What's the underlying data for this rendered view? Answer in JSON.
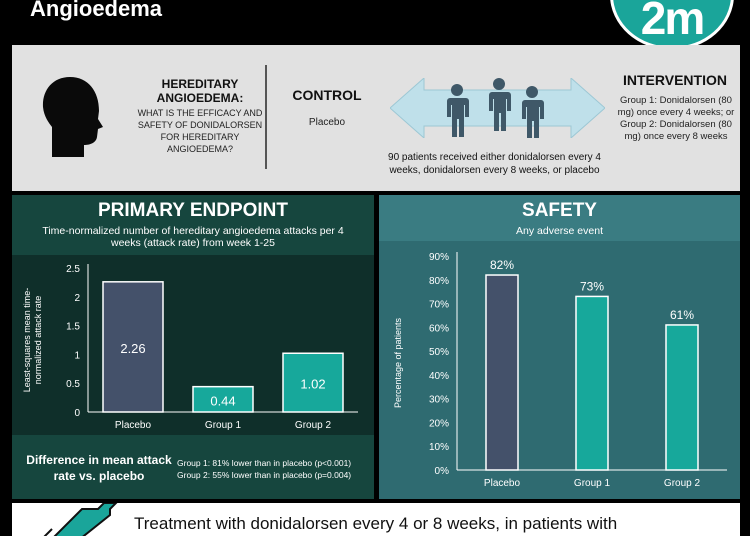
{
  "header": {
    "title": "Angioedema",
    "logo_text": "2m"
  },
  "pico": {
    "question_title": "HEREDITARY ANGIOEDEMA:",
    "question_text": "WHAT IS THE EFFICACY AND SAFETY OF DONIDALORSEN FOR HEREDITARY ANGIOEDEMA?",
    "control_title": "CONTROL",
    "control_text": "Placebo",
    "population_text": "90 patients received either donidalorsen every 4 weeks, donidalorsen every 8 weeks, or placebo",
    "intervention_title": "INTERVENTION",
    "intervention_group1": "Group 1: Donidalorsen (80 mg) once every 4 weeks; or",
    "intervention_group2": "Group 2: Donidalorsen (80 mg) once every 8 weeks"
  },
  "primary": {
    "title": "PRIMARY ENDPOINT",
    "subtitle": "Time-normalized number of hereditary angioedema attacks per 4 weeks (attack rate) from week 1-25",
    "difference_title": "Difference in mean attack rate vs. placebo",
    "difference_group1": "Group 1: 81% lower than in placebo (p<0.001)",
    "difference_group2": "Group 2: 55% lower than in placebo (p=0.004)"
  },
  "safety": {
    "title": "SAFETY",
    "subtitle": "Any adverse event"
  },
  "conclusion": {
    "text": "Treatment with donidalorsen every 4 or 8 weeks, in patients with"
  },
  "chart_data": [
    {
      "type": "bar",
      "title": "",
      "categories": [
        "Placebo",
        "Group 1",
        "Group 2"
      ],
      "values": [
        2.26,
        0.44,
        1.02
      ],
      "value_labels": [
        "2.26",
        "0.44",
        "1.02"
      ],
      "ylabel": "Least-squares mean time-normalized attack rate",
      "xlabel": "",
      "ylim": [
        0,
        2.5
      ],
      "yticks": [
        0,
        0.5,
        1,
        1.5,
        2,
        2.5
      ],
      "ytick_labels": [
        "0",
        "0.5",
        "1",
        "1.5",
        "2",
        "2.5"
      ],
      "colors": [
        "#44516a",
        "#17a89b",
        "#17a89b"
      ],
      "label_position": "inside",
      "grid": false,
      "legend": "none"
    },
    {
      "type": "bar",
      "title": "",
      "categories": [
        "Placebo",
        "Group 1",
        "Group 2"
      ],
      "values": [
        82,
        73,
        61
      ],
      "value_labels": [
        "82%",
        "73%",
        "61%"
      ],
      "ylabel": "Percentage of patients",
      "xlabel": "",
      "ylim": [
        0,
        90
      ],
      "yticks": [
        0,
        10,
        20,
        30,
        40,
        50,
        60,
        70,
        80,
        90
      ],
      "ytick_labels": [
        "0%",
        "10%",
        "20%",
        "30%",
        "40%",
        "50%",
        "60%",
        "70%",
        "80%",
        "90%"
      ],
      "colors": [
        "#44516a",
        "#17a89b",
        "#17a89b"
      ],
      "label_position": "above",
      "grid": false,
      "legend": "none"
    }
  ]
}
